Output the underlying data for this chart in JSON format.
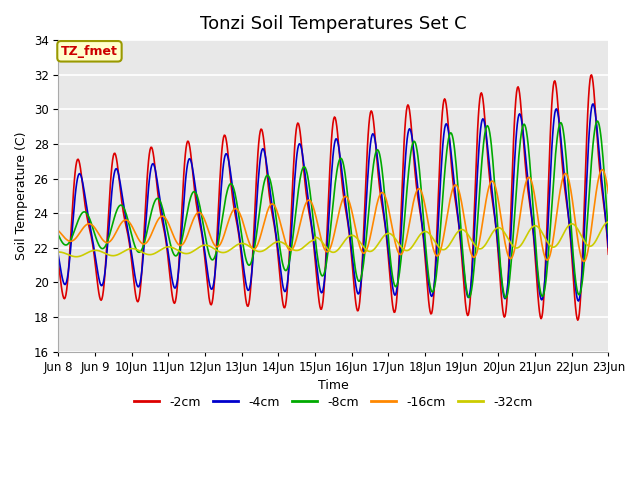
{
  "title": "Tonzi Soil Temperatures Set C",
  "xlabel": "Time",
  "ylabel": "Soil Temperature (C)",
  "ylim": [
    16,
    34
  ],
  "yticks": [
    16,
    18,
    20,
    22,
    24,
    26,
    28,
    30,
    32,
    34
  ],
  "series_colors": {
    "-2cm": "#dd0000",
    "-4cm": "#0000cc",
    "-8cm": "#00aa00",
    "-16cm": "#ff8800",
    "-32cm": "#cccc00"
  },
  "series_linewidth": 1.2,
  "annotation_text": "TZ_fmet",
  "annotation_color": "#cc0000",
  "annotation_bg": "#ffffcc",
  "annotation_border": "#999900",
  "bg_color": "#e8e8e8",
  "grid_color": "#ffffff",
  "title_fontsize": 13,
  "label_fontsize": 9,
  "tick_fontsize": 8.5
}
